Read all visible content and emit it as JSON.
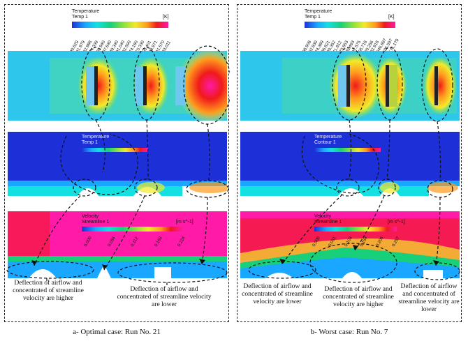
{
  "legend": {
    "temperature": "Temperature",
    "temp_series": "Temp 1",
    "contour_series": "Contour 1",
    "velocity": "Velocity",
    "streamline_series": "Streamline 1",
    "unit_k": "[K]",
    "unit_velocity": "[m s^-1]"
  },
  "panel_a": {
    "temp_ticks": [
      "299.629",
      "341.979",
      "382.988",
      "424.339",
      "465.940",
      "507.640",
      "549.340",
      "591.040",
      "632.590",
      "674.180",
      "715.330",
      "758.401",
      "799.971",
      "841.570",
      "883.011"
    ],
    "velocity_ticks": [
      "0.000",
      "0.056",
      "0.112",
      "0.168",
      "0.224"
    ],
    "annotation_left": "Deflection of airflow and concentrated of streamline velocity are higher",
    "annotation_right": "Deflection of airflow and concentrated of streamline velocity are lower",
    "caption": "a- Optimal case: Run No. 21"
  },
  "panel_b": {
    "temp_ticks": [
      "298.908",
      "362.839",
      "424.389",
      "486.821",
      "549.352",
      "611.812",
      "673.853",
      "735.493",
      "797.575",
      "858.718",
      "920.256",
      "982.918",
      "1046.897",
      "1105.597",
      "1171.179"
    ],
    "velocity_ticks": [
      "0.000",
      "0.051",
      "0.103",
      "0.154",
      "0.205",
      "0.257"
    ],
    "annotation_left": "Deflection of airflow and concentrated of streamline velocity are lower",
    "annotation_middle": "Deflection of airflow and concentrated of streamline velocity are higher",
    "annotation_right": "Deflection of airflow and concentrated of streamline velocity are lower",
    "caption": "b- Worst case: Run No. 7"
  },
  "colors": {
    "cold": "#1f2fd8",
    "cyan": "#13e0e0",
    "green": "#18d07a",
    "yellow": "#f2ea2a",
    "red": "#f01a1a",
    "magenta": "#ff1aa8"
  }
}
